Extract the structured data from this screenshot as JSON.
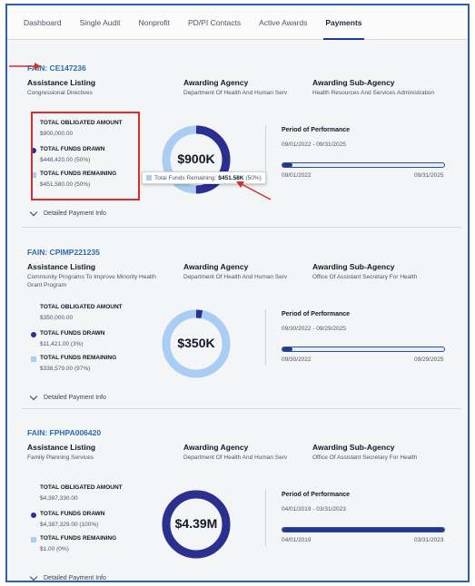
{
  "tabs": [
    {
      "label": "Dashboard",
      "active": false
    },
    {
      "label": "Single Audit",
      "active": false
    },
    {
      "label": "Nonprofit",
      "active": false
    },
    {
      "label": "PD/PI Contacts",
      "active": false
    },
    {
      "label": "Active Awards",
      "active": false
    },
    {
      "label": "Payments",
      "active": true
    }
  ],
  "colors": {
    "drawn": "#2b2f8f",
    "remaining": "#a9cdf3",
    "accent": "#1f3a8a",
    "highlight": "#d32f2f"
  },
  "labels": {
    "assistance_listing": "Assistance Listing",
    "awarding_agency": "Awarding Agency",
    "awarding_sub_agency": "Awarding Sub-Agency",
    "total_obligated": "TOTAL OBLIGATED AMOUNT",
    "total_drawn": "TOTAL FUNDS DRAWN",
    "total_remaining": "TOTAL FUNDS REMAINING",
    "period": "Period of Performance",
    "detail": "Detailed Payment Info"
  },
  "tooltip": {
    "label": "Total Funds Remaining:",
    "value": "$451.58K",
    "percent": "(50%)"
  },
  "awards": [
    {
      "fain": "FAIN: CE147236",
      "assistance_listing": "Congressional Directives",
      "agency": "Department Of Health And Human Serv",
      "sub_agency": "Health Resources And Services Administration",
      "obligated": "$900,000.00",
      "drawn": "$448,420.00 (50%)",
      "remaining": "$451,580.00 (50%)",
      "donut_label": "$900K",
      "drawn_fraction": 0.5,
      "period": "09/01/2022 - 09/31/2025",
      "start": "09/01/2022",
      "end": "09/31/2025",
      "progress": 0.06
    },
    {
      "fain": "FAIN: CPIMP221235",
      "assistance_listing": "Community Programs To Improve Minority Health Grant Program",
      "agency": "Department Of Health And Human Serv",
      "sub_agency": "Office Of Assistant Secretary For Health",
      "obligated": "$350,000.00",
      "drawn": "$11,421.00 (3%)",
      "remaining": "$338,579.00 (97%)",
      "donut_label": "$350K",
      "drawn_fraction": 0.03,
      "period": "09/30/2022 - 09/29/2025",
      "start": "09/30/2022",
      "end": "09/29/2025",
      "progress": 0.06
    },
    {
      "fain": "FAIN: FPHPA006420",
      "assistance_listing": "Family Planning Services",
      "agency": "Department Of Health And Human Serv",
      "sub_agency": "Office Of Assistant Secretary For Health",
      "obligated": "$4,387,330.00",
      "drawn": "$4,387,329.00 (100%)",
      "remaining": "$1.00 (0%)",
      "donut_label": "$4.39M",
      "drawn_fraction": 1.0,
      "period": "04/01/2019 - 03/31/2023",
      "start": "04/01/2019",
      "end": "03/31/2023",
      "progress": 1.0
    }
  ]
}
